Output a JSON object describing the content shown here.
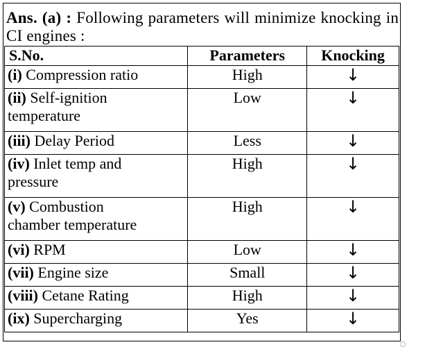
{
  "intro": {
    "ans_label": "Ans.",
    "ans_part": "(a)",
    "colon": ":",
    "text": "Following parameters will minimize knocking in CI engines :"
  },
  "table": {
    "headers": [
      "S.No.",
      "Parameters",
      "Knocking"
    ],
    "rows": [
      {
        "num": "(i)",
        "name": "Compression ratio",
        "name2": "",
        "value": "High",
        "knock": "↓"
      },
      {
        "num": "(ii)",
        "name": "Self-ignition",
        "name2": "temperature",
        "value": "Low",
        "knock": "↓"
      },
      {
        "num": "(iii)",
        "name": "Delay Period",
        "name2": "",
        "value": "Less",
        "knock": "↓"
      },
      {
        "num": "(iv)",
        "name": "Inlet temp and",
        "name2": "pressure",
        "value": "High",
        "knock": "↓"
      },
      {
        "num": "(v)",
        "name": "Combustion",
        "name2": "chamber temperature",
        "value": "High",
        "knock": "↓"
      },
      {
        "num": "(vi)",
        "name": "RPM",
        "name2": "",
        "value": "Low",
        "knock": "↓"
      },
      {
        "num": "(vii)",
        "name": "Engine size",
        "name2": "",
        "value": "Small",
        "knock": "↓"
      },
      {
        "num": "(viii)",
        "name": "Cetane Rating",
        "name2": "",
        "value": "High",
        "knock": "↓"
      },
      {
        "num": "(ix)",
        "name": "Supercharging",
        "name2": "",
        "value": "Yes",
        "knock": "↓"
      }
    ]
  }
}
